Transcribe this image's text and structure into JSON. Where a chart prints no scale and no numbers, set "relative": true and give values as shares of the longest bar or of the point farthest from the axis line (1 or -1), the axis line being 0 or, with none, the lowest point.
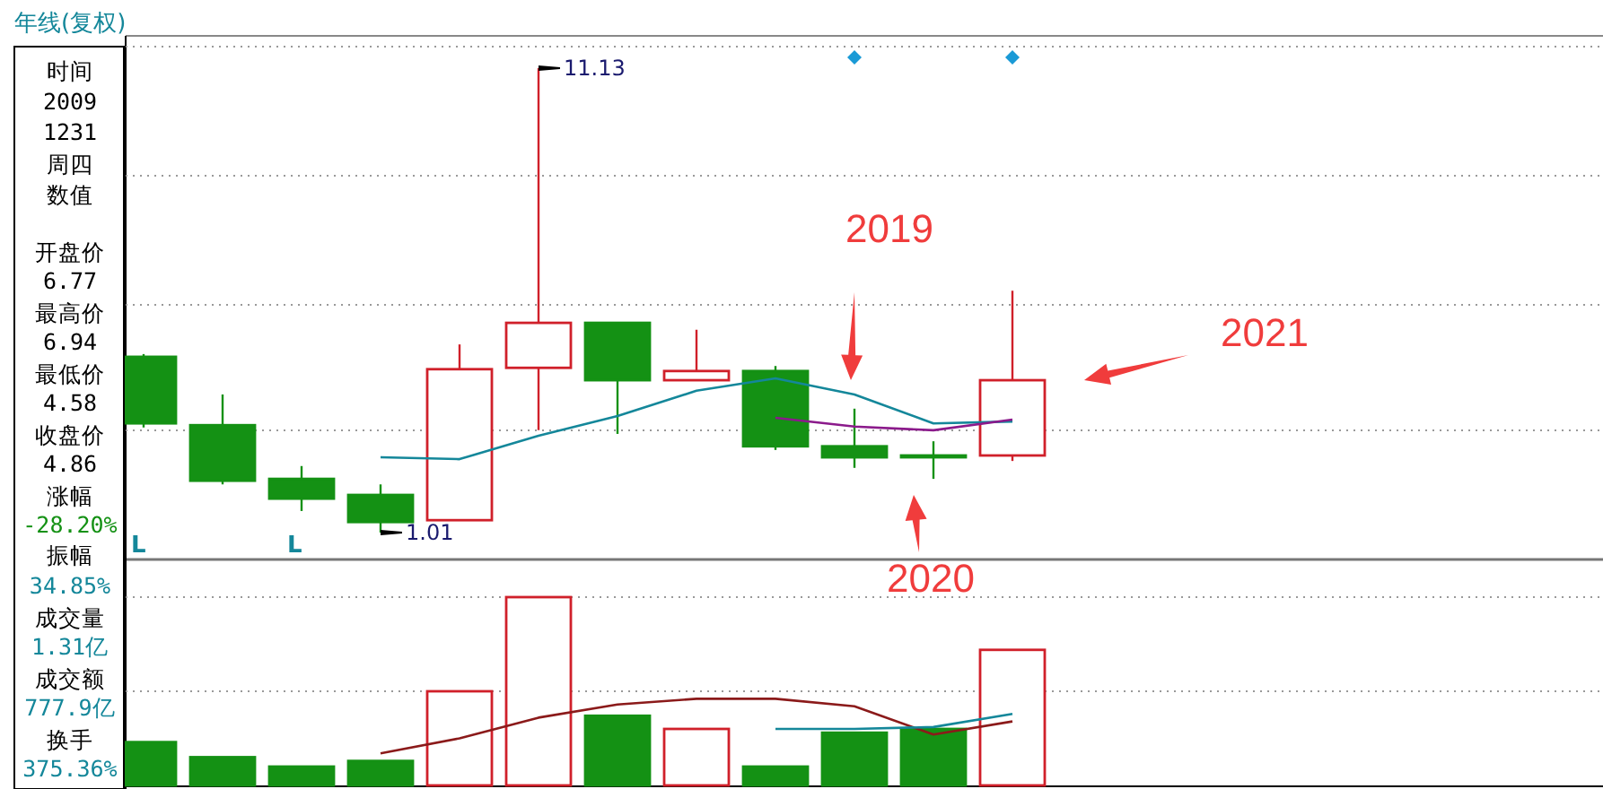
{
  "chart_data": [
    {
      "type": "candlestick",
      "title": "年线(复权)",
      "categories": [
        null,
        null,
        null,
        null,
        null,
        null,
        null,
        null,
        null,
        null,
        null,
        null
      ],
      "ohlc": [
        [
          4.84,
          4.9,
          3.3,
          3.39
        ],
        [
          3.35,
          4.02,
          2.06,
          2.14
        ],
        [
          2.18,
          2.46,
          1.48,
          1.75
        ],
        [
          1.83,
          2.06,
          1.01,
          1.24
        ],
        [
          1.28,
          5.11,
          1.28,
          4.57
        ],
        [
          4.6,
          11.13,
          3.24,
          5.58
        ],
        [
          5.58,
          5.58,
          3.16,
          4.33
        ],
        [
          4.33,
          5.43,
          4.33,
          4.53
        ],
        [
          4.53,
          4.64,
          2.81,
          2.89
        ],
        [
          2.89,
          3.71,
          2.42,
          2.65
        ],
        [
          2.69,
          3.0,
          2.18,
          2.69
        ],
        [
          2.69,
          6.28,
          2.57,
          4.33
        ]
      ],
      "colors": [
        "#149114",
        "#149114",
        "#149114",
        "#149114",
        "#d0202a",
        "#d0202a",
        "#149114",
        "#d0202a",
        "#149114",
        "#149114",
        "#149114",
        "#d0202a"
      ],
      "series": [
        {
          "type": "line",
          "color": "#14879a",
          "values": [
            null,
            null,
            null,
            2.65,
            2.61,
            3.12,
            3.55,
            4.1,
            4.37,
            4.02,
            3.39,
            3.43
          ]
        },
        {
          "type": "line",
          "color": "#8b1a8b",
          "values": [
            null,
            null,
            null,
            null,
            null,
            null,
            null,
            null,
            3.51,
            3.32,
            3.24,
            3.47
          ]
        }
      ],
      "annotations": [
        "11.13",
        "1.01",
        "L",
        "L",
        "2019",
        "2020",
        "2021"
      ],
      "grid": true
    },
    {
      "type": "bar",
      "relative": true,
      "categories": [
        null,
        null,
        null,
        null,
        null,
        null,
        null,
        null,
        null,
        null,
        null,
        null
      ],
      "series": [
        {
          "type": "bar",
          "values": [
            0.23,
            0.15,
            0.1,
            0.13,
            0.5,
            1,
            0.37,
            0.3,
            0.1,
            0.28,
            0.3,
            0.72
          ],
          "colors": [
            "#149114",
            "#149114",
            "#149114",
            "#149114",
            "#d0202a",
            "#d0202a",
            "#149114",
            "#d0202a",
            "#149114",
            "#149114",
            "#149114",
            "#d0202a"
          ]
        },
        {
          "type": "line",
          "color": "#8b1a1a",
          "values": [
            null,
            null,
            null,
            0.17,
            0.25,
            0.36,
            0.43,
            0.46,
            0.46,
            0.42,
            0.27,
            0.34
          ]
        },
        {
          "type": "line",
          "color": "#14879a",
          "values": [
            null,
            null,
            null,
            null,
            null,
            null,
            null,
            null,
            0.3,
            0.3,
            0.31,
            0.38
          ]
        }
      ],
      "ref_lines": [
        {
          "axis": "y",
          "value": 0.5,
          "color": "#999999",
          "line_style": "dotted"
        },
        {
          "axis": "y",
          "value": 1,
          "color": "#999999",
          "line_style": "dotted"
        }
      ]
    },
    {
      "type": "other",
      "annotations": [
        "时间",
        "2009",
        "1231",
        "周四",
        "数值",
        "开盘价",
        "6.77",
        "最高价",
        "6.94",
        "最低价",
        "4.58",
        "收盘价",
        "4.86",
        "涨幅",
        "-28.20%",
        "振幅",
        "34.85%",
        "成交量",
        "1.31亿",
        "成交额",
        "777.9亿",
        "换手",
        "375.36%"
      ]
    }
  ]
}
